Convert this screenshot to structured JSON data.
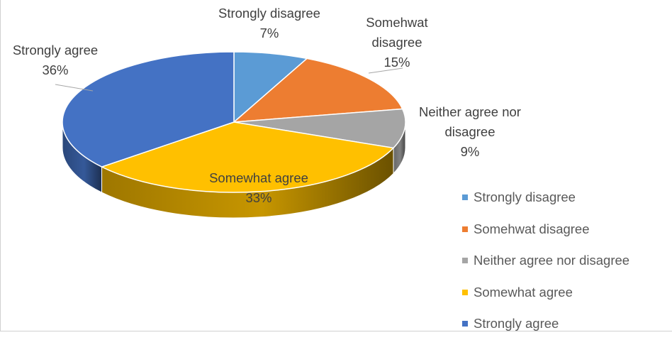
{
  "chart_data": {
    "type": "pie",
    "style": "3d-pie",
    "slices": [
      {
        "label": "Strongly disagree",
        "percent": 7,
        "value_label": "7%",
        "color": "#5B9BD5"
      },
      {
        "label": "Somehwat disagree",
        "percent": 15,
        "value_label": "15%",
        "color": "#ED7D31"
      },
      {
        "label": "Neither agree nor disagree",
        "percent": 9,
        "value_label": "9%",
        "color": "#A5A5A5"
      },
      {
        "label": "Somewhat agree",
        "percent": 33,
        "value_label": "33%",
        "color": "#FFC000"
      },
      {
        "label": "Strongly agree",
        "percent": 36,
        "value_label": "36%",
        "color": "#4472C4"
      }
    ],
    "data_labels": [
      {
        "lines": [
          "Strongly disagree",
          "7%"
        ]
      },
      {
        "lines": [
          "Somehwat",
          "disagree",
          "15%"
        ]
      },
      {
        "lines": [
          "Neither agree nor",
          "disagree",
          "9%"
        ]
      },
      {
        "lines": [
          "Somewhat agree",
          "33%"
        ]
      },
      {
        "lines": [
          "Strongly agree",
          "36%"
        ]
      }
    ],
    "legend": {
      "position": "right",
      "entries": [
        "Strongly disagree",
        "Somehwat disagree",
        "Neither agree nor disagree",
        "Somewhat agree",
        "Strongly agree"
      ]
    }
  }
}
